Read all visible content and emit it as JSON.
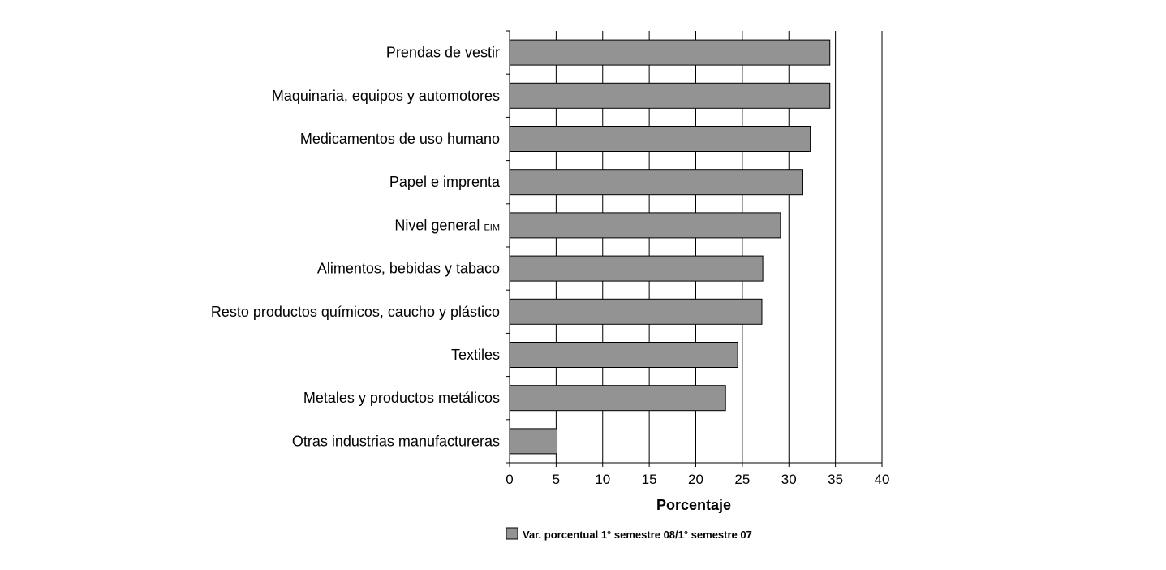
{
  "chart_data": {
    "type": "bar",
    "orientation": "horizontal",
    "categories": [
      "Prendas de vestir",
      "Maquinaria, equipos y automotores",
      "Medicamentos de uso humano",
      "Papel e imprenta",
      "Nivel general EIM",
      "Alimentos, bebidas y tabaco",
      "Resto productos químicos, caucho y plástico",
      "Textiles",
      "Metales y productos metálicos",
      "Otras industrias manufactureras"
    ],
    "category_label_parts": [
      [
        "Prendas de vestir",
        ""
      ],
      [
        "Maquinaria, equipos y automotores",
        ""
      ],
      [
        "Medicamentos de uso humano",
        ""
      ],
      [
        "Papel e imprenta",
        ""
      ],
      [
        "Nivel general ",
        "EIM"
      ],
      [
        "Alimentos, bebidas y tabaco",
        ""
      ],
      [
        "Resto productos químicos, caucho y plástico",
        ""
      ],
      [
        "Textiles",
        ""
      ],
      [
        "Metales y productos metálicos",
        ""
      ],
      [
        "Otras industrias manufactureras",
        ""
      ]
    ],
    "series": [
      {
        "name": "Var. porcentual 1° semestre 08/1° semestre 07",
        "values": [
          34.4,
          34.4,
          32.3,
          31.5,
          29.1,
          27.2,
          27.1,
          24.5,
          23.2,
          5.1
        ]
      }
    ],
    "xlim": [
      0,
      40
    ],
    "xticks": [
      0,
      5,
      10,
      15,
      20,
      25,
      30,
      35,
      40
    ],
    "xlabel": "Porcentaje",
    "ylabel": "",
    "title": "",
    "grid": "vertical",
    "legend_position": "bottom",
    "colors": {
      "bar": "#939393",
      "bar_stroke": "#000000",
      "grid": "#000000"
    }
  }
}
